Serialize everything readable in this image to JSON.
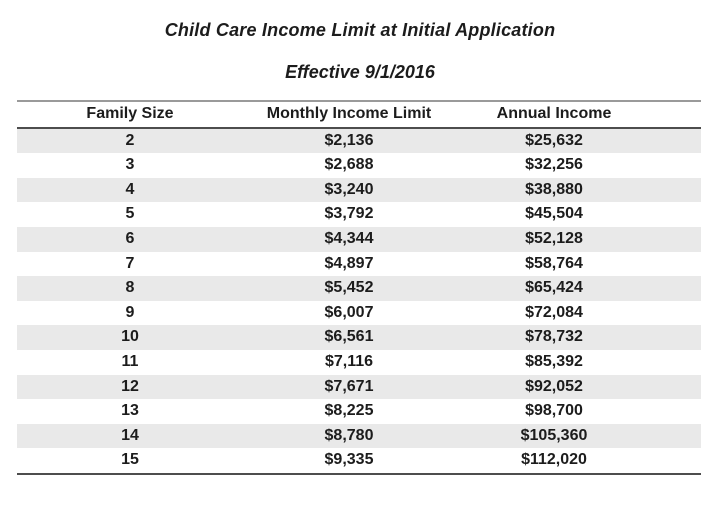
{
  "page": {
    "title": "Child Care Income Limit at Initial Application",
    "subtitle": "Effective 9/1/2016"
  },
  "table": {
    "columns": [
      "Family Size",
      "Monthly Income Limit",
      "Annual Income"
    ],
    "rows": [
      [
        "2",
        "$2,136",
        "$25,632"
      ],
      [
        "3",
        "$2,688",
        "$32,256"
      ],
      [
        "4",
        "$3,240",
        "$38,880"
      ],
      [
        "5",
        "$3,792",
        "$45,504"
      ],
      [
        "6",
        "$4,344",
        "$52,128"
      ],
      [
        "7",
        "$4,897",
        "$58,764"
      ],
      [
        "8",
        "$5,452",
        "$65,424"
      ],
      [
        "9",
        "$6,007",
        "$72,084"
      ],
      [
        "10",
        "$6,561",
        "$78,732"
      ],
      [
        "11",
        "$7,116",
        "$85,392"
      ],
      [
        "12",
        "$7,671",
        "$92,052"
      ],
      [
        "13",
        "$8,225",
        "$98,700"
      ],
      [
        "14",
        "$8,780",
        "$105,360"
      ],
      [
        "15",
        "$9,335",
        "$112,020"
      ]
    ]
  },
  "colors": {
    "row_stripe": "#e9e9e9",
    "rule_top": "#9a9a9a",
    "rule_dark": "#4d4d4d",
    "text": "#1c1c1c",
    "background": "#ffffff"
  }
}
